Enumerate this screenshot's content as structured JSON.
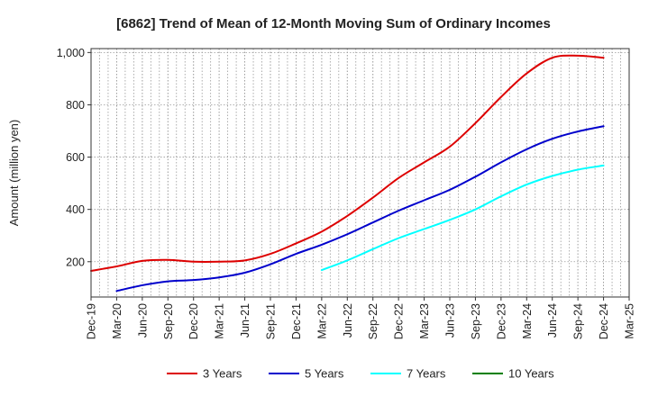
{
  "chart_data": {
    "type": "line",
    "title": "[6862]  Trend of Mean of 12-Month Moving Sum of Ordinary Incomes",
    "xlabel": "",
    "ylabel": "Amount (million yen)",
    "categories": [
      "Dec-19",
      "Mar-20",
      "Jun-20",
      "Sep-20",
      "Dec-20",
      "Mar-21",
      "Jun-21",
      "Sep-21",
      "Dec-21",
      "Mar-22",
      "Jun-22",
      "Sep-22",
      "Dec-22",
      "Mar-23",
      "Jun-23",
      "Sep-23",
      "Dec-23",
      "Mar-24",
      "Jun-24",
      "Sep-24",
      "Dec-24",
      "Mar-25"
    ],
    "ylim": [
      65,
      1015
    ],
    "yticks": [
      200,
      400,
      600,
      800,
      1000
    ],
    "ytick_labels": [
      "200",
      "400",
      "600",
      "800",
      "1,000"
    ],
    "grid": true,
    "legend_position": "bottom",
    "series": [
      {
        "name": "3 Years",
        "color": "#dd0000",
        "values": [
          165,
          182,
          203,
          207,
          200,
          200,
          205,
          230,
          270,
          315,
          375,
          445,
          520,
          580,
          640,
          730,
          830,
          920,
          980,
          988,
          980,
          null
        ]
      },
      {
        "name": "5 Years",
        "color": "#0000cc",
        "values": [
          null,
          88,
          110,
          125,
          130,
          140,
          158,
          190,
          230,
          265,
          305,
          350,
          395,
          435,
          475,
          525,
          580,
          630,
          670,
          698,
          718,
          null
        ]
      },
      {
        "name": "7 Years",
        "color": "#00ffff",
        "values": [
          null,
          null,
          null,
          null,
          null,
          null,
          null,
          null,
          null,
          168,
          205,
          248,
          290,
          325,
          360,
          400,
          450,
          495,
          528,
          552,
          568,
          null
        ]
      },
      {
        "name": "10 Years",
        "color": "#008000",
        "values": [
          null,
          null,
          null,
          null,
          null,
          null,
          null,
          null,
          null,
          null,
          null,
          null,
          null,
          null,
          null,
          null,
          null,
          null,
          null,
          null,
          null,
          null
        ]
      }
    ]
  }
}
